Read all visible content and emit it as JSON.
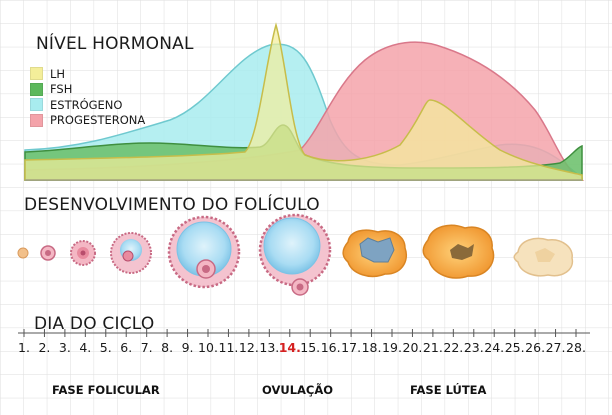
{
  "sections": {
    "hormone_level": "NÍVEL HORMONAL",
    "follicle_development": "DESENVOLVIMENTO DO FOLÍCULO",
    "cycle_day": "DIA DO CICLO"
  },
  "legend": [
    {
      "label": "LH",
      "color": "#f4ee9a"
    },
    {
      "label": "FSH",
      "color": "#5cb85c"
    },
    {
      "label": "ESTRÓGENO",
      "color": "#a8ecef"
    },
    {
      "label": "PROGESTERONA",
      "color": "#f4a3aa"
    }
  ],
  "days": [
    "1.",
    "2.",
    "3.",
    "4.",
    "5.",
    "6.",
    "7.",
    "8.",
    "9.",
    "10.",
    "11.",
    "12.",
    "13.",
    "14.",
    "15.",
    "16.",
    "17.",
    "18.",
    "19.",
    "20.",
    "21.",
    "22.",
    "23.",
    "24.",
    "25.",
    "26.",
    "27.",
    "28."
  ],
  "highlight_day": "14.",
  "phases": [
    "FASE FOLICULAR",
    "OVULAÇÃO",
    "FASE LÚTEA"
  ],
  "colors": {
    "lh": "#f4ee9a",
    "fsh": "#6cc06c",
    "estrogen": "#a8ecef",
    "progesterone": "#f4a3aa",
    "follicle_ring": "#e98b9f",
    "follicle_fill": "#a9dcf3",
    "corpus_luteum": "#f3a64b",
    "highlight": "#d42020"
  }
}
